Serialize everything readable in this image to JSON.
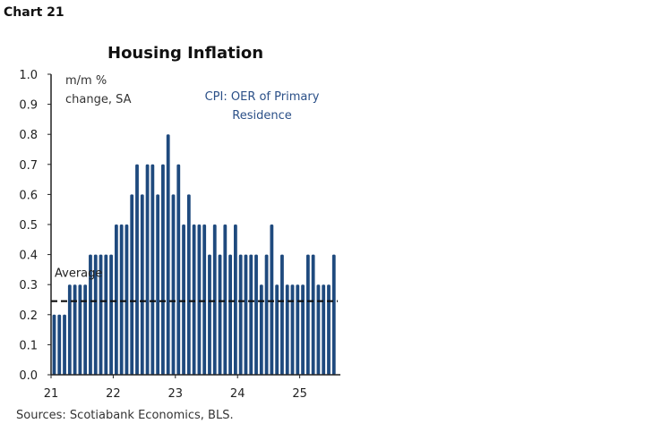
{
  "chart_label": "Chart 21",
  "chart_data": {
    "type": "bar",
    "title": "Housing Inflation",
    "ylabel": "m/m % change, SA",
    "ylabel_lines": [
      "m/m %",
      "change, SA"
    ],
    "series_label_lines": [
      "CPI: OER of Primary",
      "Residence"
    ],
    "ylim": [
      0,
      1.0
    ],
    "yticks": [
      "0.0",
      "0.1",
      "0.2",
      "0.3",
      "0.4",
      "0.5",
      "0.6",
      "0.7",
      "0.8",
      "0.9",
      "1.0"
    ],
    "xticks": [
      "21",
      "22",
      "23",
      "24",
      "25"
    ],
    "start": "2021-01",
    "frequency": "monthly",
    "values": [
      0.2,
      0.2,
      0.2,
      0.3,
      0.3,
      0.3,
      0.3,
      0.4,
      0.4,
      0.4,
      0.4,
      0.4,
      0.5,
      0.5,
      0.5,
      0.6,
      0.7,
      0.6,
      0.7,
      0.7,
      0.6,
      0.7,
      0.8,
      0.6,
      0.7,
      0.5,
      0.6,
      0.5,
      0.5,
      0.5,
      0.4,
      0.5,
      0.4,
      0.5,
      0.4,
      0.5,
      0.4,
      0.4,
      0.4,
      0.4,
      0.3,
      0.4,
      0.5,
      0.3,
      0.4,
      0.3,
      0.3,
      0.3,
      0.3,
      0.4,
      0.4,
      0.3,
      0.3,
      0.3,
      0.4
    ],
    "average": {
      "label": "Average",
      "value": 0.245
    },
    "bar_color": "#1f4a7e",
    "grid": false
  },
  "source": "Sources: Scotiabank Economics, BLS."
}
